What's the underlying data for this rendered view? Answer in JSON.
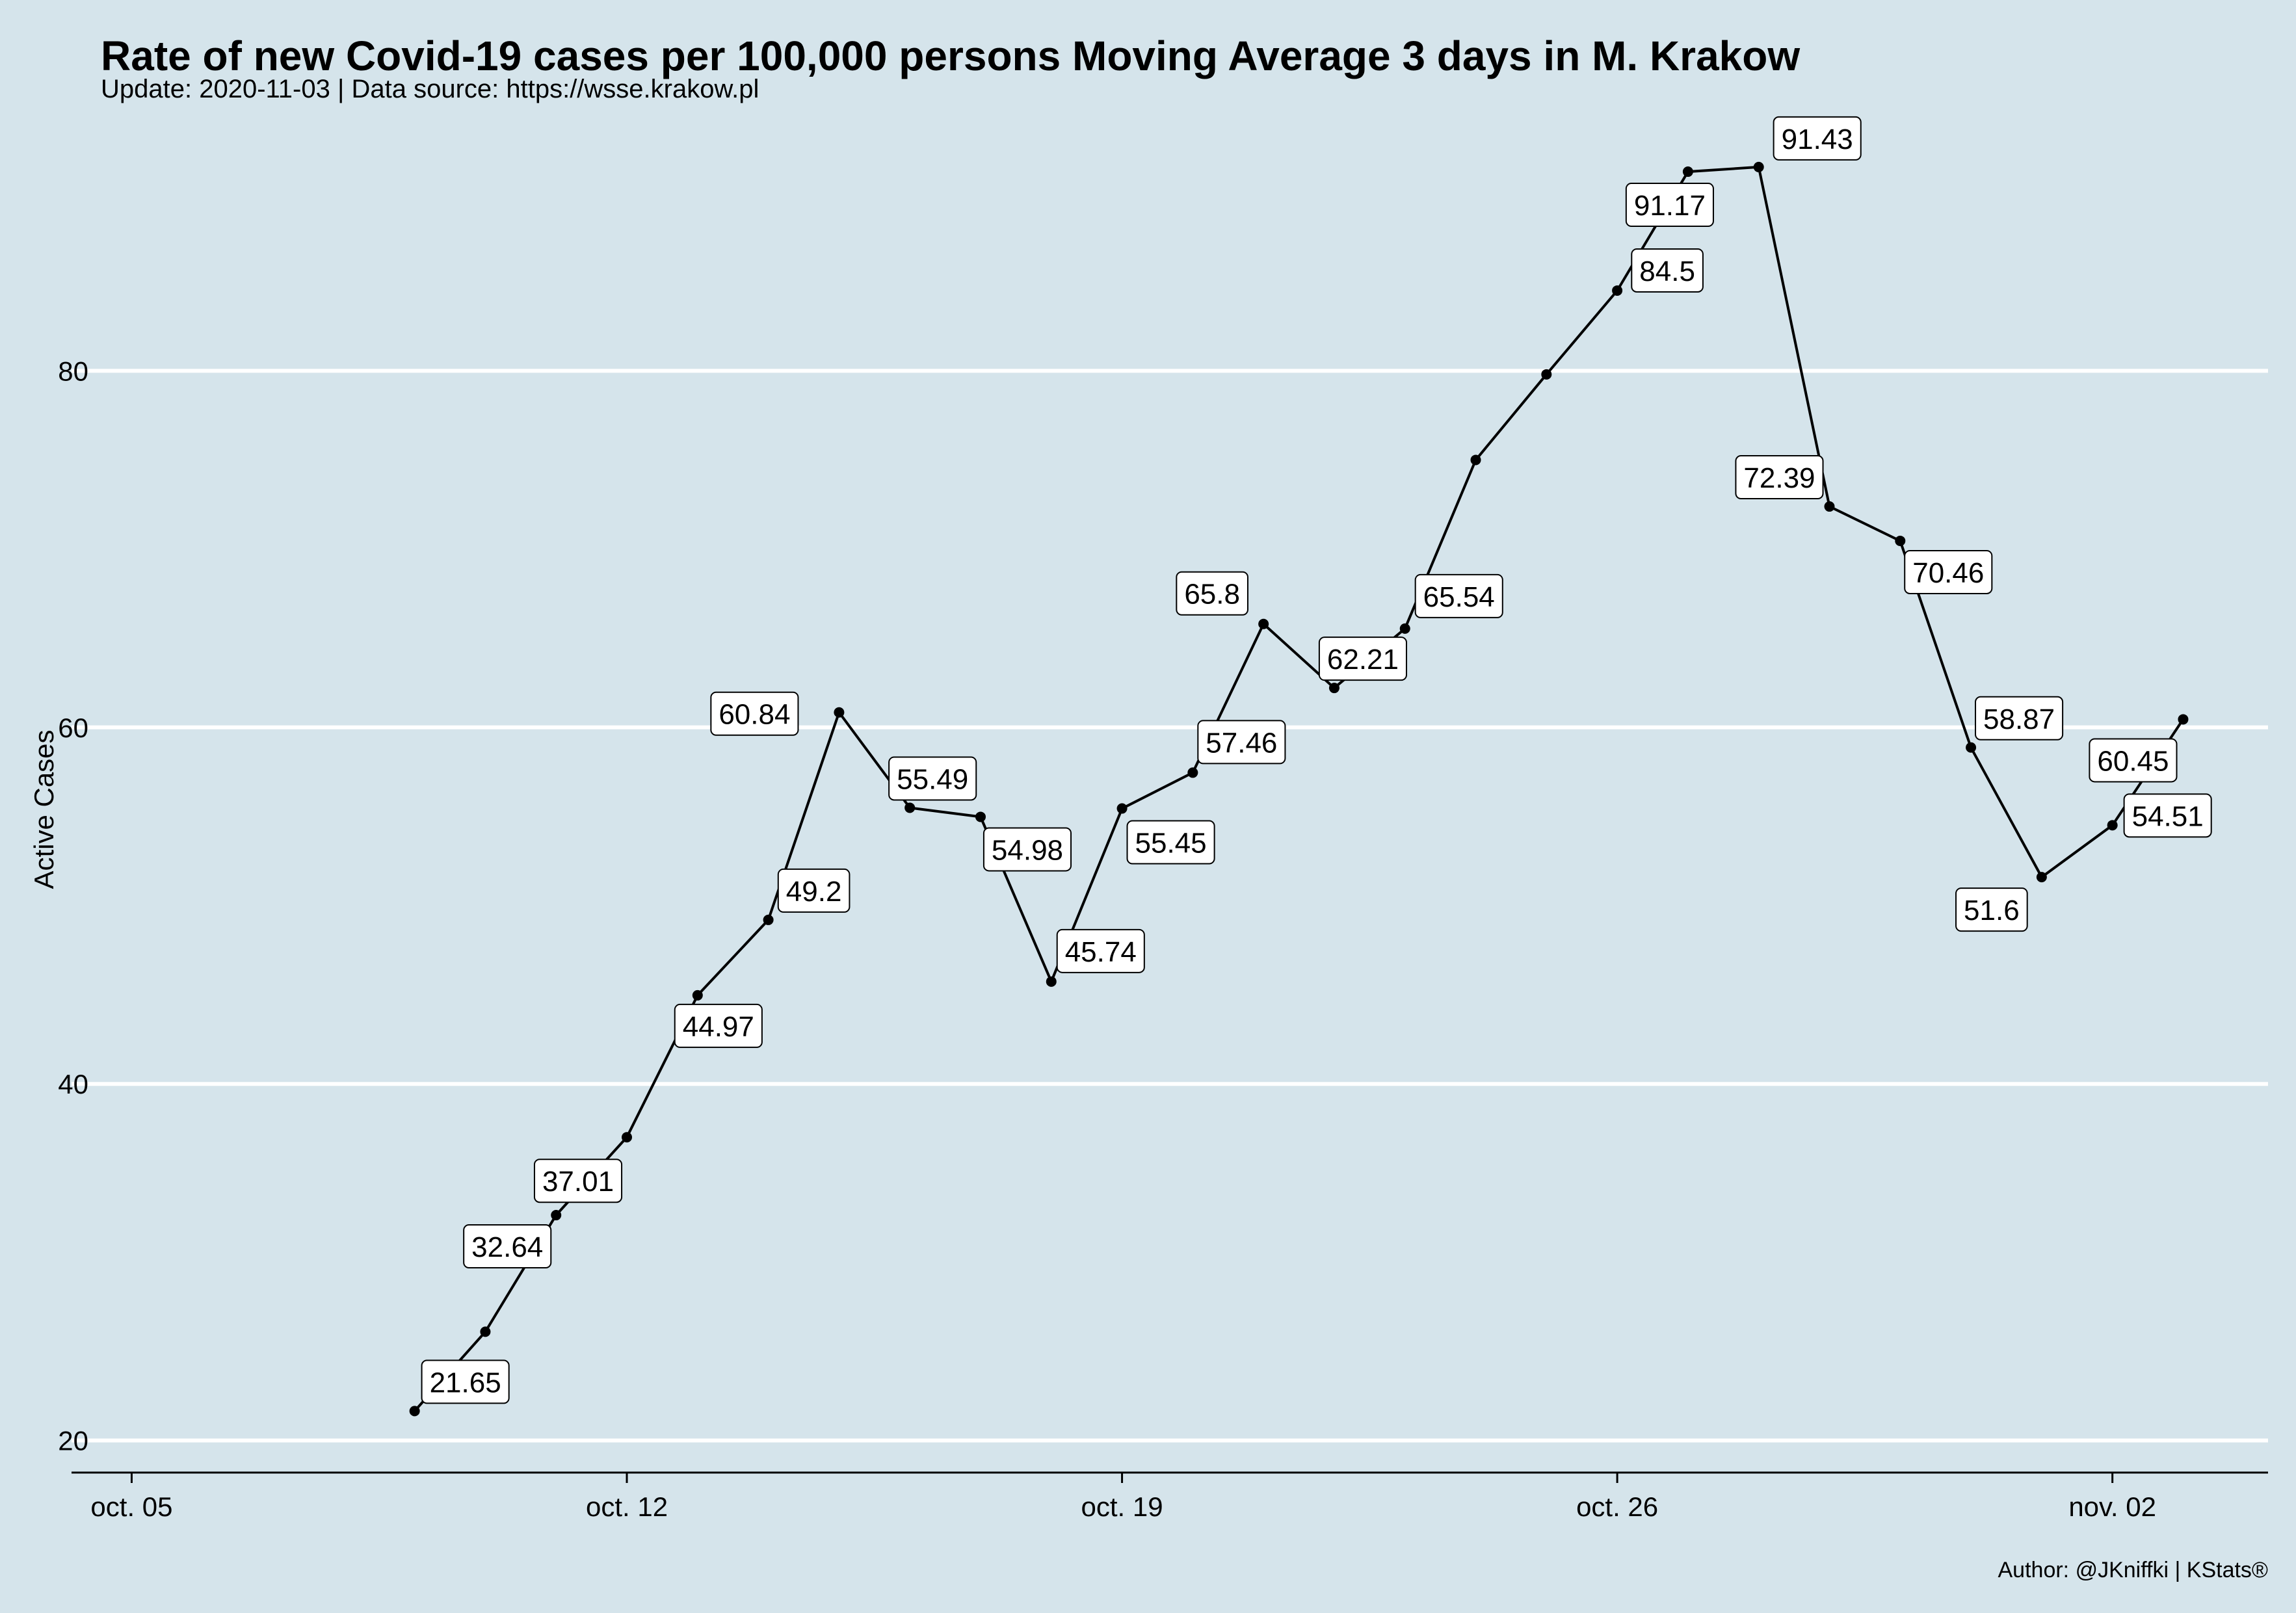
{
  "chart_data": {
    "type": "line",
    "title": "Rate of new Covid-19 cases per 100,000 persons Moving Average 3 days in M. Krakow",
    "subtitle": "Update: 2020-11-03 | Data source: https://wsse.krakow.pl",
    "ylabel": "Active Cases",
    "xlabel": "",
    "caption": "Author: @JKniffki | KStats®",
    "ylim": [
      18.2,
      94.6
    ],
    "xlim": [
      -0.85,
      30.2
    ],
    "x_ticks": [
      {
        "day": 0,
        "label": "oct. 05"
      },
      {
        "day": 7,
        "label": "oct. 12"
      },
      {
        "day": 14,
        "label": "oct. 19"
      },
      {
        "day": 21,
        "label": "oct. 26"
      },
      {
        "day": 28,
        "label": "nov. 02"
      }
    ],
    "y_ticks": [
      20,
      40,
      60,
      80
    ],
    "points": [
      {
        "date": "2020-10-09",
        "day": 4,
        "value": 21.65,
        "label": "21.65"
      },
      {
        "date": "2020-10-10",
        "day": 5,
        "value": 26.1
      },
      {
        "date": "2020-10-11",
        "day": 6,
        "value": 32.64,
        "label": "32.64"
      },
      {
        "date": "2020-10-12",
        "day": 7,
        "value": 37.01,
        "label": "37.01"
      },
      {
        "date": "2020-10-13",
        "day": 8,
        "value": 44.97,
        "label": "44.97"
      },
      {
        "date": "2020-10-14",
        "day": 9,
        "value": 49.2,
        "label": "49.2"
      },
      {
        "date": "2020-10-15",
        "day": 10,
        "value": 60.84,
        "label": "60.84"
      },
      {
        "date": "2020-10-16",
        "day": 11,
        "value": 55.49,
        "label": "55.49"
      },
      {
        "date": "2020-10-17",
        "day": 12,
        "value": 54.98,
        "label": "54.98"
      },
      {
        "date": "2020-10-18",
        "day": 13,
        "value": 45.74,
        "label": "45.74"
      },
      {
        "date": "2020-10-19",
        "day": 14,
        "value": 55.45,
        "label": "55.45"
      },
      {
        "date": "2020-10-20",
        "day": 15,
        "value": 57.46,
        "label": "57.46"
      },
      {
        "date": "2020-10-21",
        "day": 16,
        "value": 65.8,
        "label": "65.8"
      },
      {
        "date": "2020-10-22",
        "day": 17,
        "value": 62.21,
        "label": "62.21"
      },
      {
        "date": "2020-10-23",
        "day": 18,
        "value": 65.54,
        "label": "65.54"
      },
      {
        "date": "2020-10-24",
        "day": 19,
        "value": 75.0
      },
      {
        "date": "2020-10-25",
        "day": 20,
        "value": 79.8
      },
      {
        "date": "2020-10-26",
        "day": 21,
        "value": 84.5,
        "label": "84.5"
      },
      {
        "date": "2020-10-27",
        "day": 22,
        "value": 91.17,
        "label": "91.17"
      },
      {
        "date": "2020-10-28",
        "day": 23,
        "value": 91.43,
        "label": "91.43"
      },
      {
        "date": "2020-10-29",
        "day": 24,
        "value": 72.39,
        "label": "72.39"
      },
      {
        "date": "2020-10-30",
        "day": 25,
        "value": 70.46,
        "label": "70.46"
      },
      {
        "date": "2020-10-31",
        "day": 26,
        "value": 58.87,
        "label": "58.87"
      },
      {
        "date": "2020-11-01",
        "day": 27,
        "value": 51.6,
        "label": "51.6"
      },
      {
        "date": "2020-11-02",
        "day": 28,
        "value": 54.51,
        "label": "54.51"
      },
      {
        "date": "2020-11-03",
        "day": 29,
        "value": 60.45,
        "label": "60.45"
      }
    ],
    "colors": {
      "background": "#d5e4eb",
      "grid": "#ffffff",
      "line": "#000000",
      "label_fill": "#ffffff"
    }
  }
}
